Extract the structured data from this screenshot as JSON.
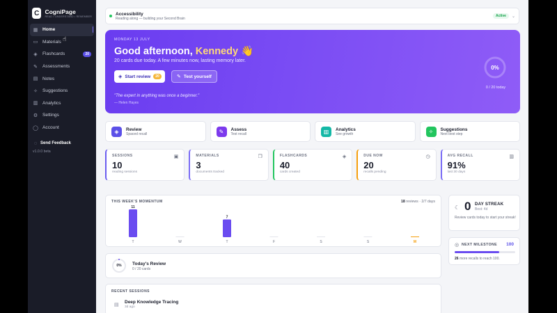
{
  "brand": {
    "name": "CogniPage",
    "tagline": "READ • UNDERSTAND • REMEMBER"
  },
  "sidebar": {
    "items": [
      {
        "label": "Home",
        "icon": "grid-icon",
        "active": true
      },
      {
        "label": "Materials",
        "icon": "folder-icon"
      },
      {
        "label": "Flashcards",
        "icon": "layers-icon",
        "badge": "20"
      },
      {
        "label": "Assessments",
        "icon": "pencil-icon"
      },
      {
        "label": "Notes",
        "icon": "note-icon"
      },
      {
        "label": "Suggestions",
        "icon": "sparkle-icon"
      },
      {
        "label": "Analytics",
        "icon": "chart-icon"
      },
      {
        "label": "Settings",
        "icon": "gear-icon"
      },
      {
        "label": "Account",
        "icon": "user-icon"
      }
    ],
    "feedback": "Send Feedback",
    "version": "v1.0.0 beta"
  },
  "accessibility": {
    "title": "Accessibility",
    "subtitle": "Reading along — building your Second Brain",
    "status": "Active"
  },
  "hero": {
    "date": "MONDAY 13 JULY",
    "greeting": "Good afternoon, ",
    "name": "Kennedy",
    "emoji": "👋",
    "subtitle": "20 cards due today. A few minutes now, lasting memory later.",
    "review_label": "Start review",
    "review_count": "20",
    "test_label": "Test yourself",
    "quote": "\"The expert in anything was once a beginner.\"",
    "author": "— Helen Hayes",
    "progress": "0%",
    "progress_fraction": 0,
    "today": "0 / 20 today"
  },
  "actions": [
    {
      "title": "Review",
      "subtitle": "Spaced recall",
      "color": "#5b50e8"
    },
    {
      "title": "Assess",
      "subtitle": "Test recall",
      "color": "#7c3aed"
    },
    {
      "title": "Analytics",
      "subtitle": "See growth",
      "color": "#14b8a6"
    },
    {
      "title": "Suggestions",
      "subtitle": "Next best step",
      "color": "#22c55e"
    }
  ],
  "stats": [
    {
      "label": "SESSIONS",
      "value": "10",
      "sub": "reading sessions",
      "accent": "#6a5cf0"
    },
    {
      "label": "MATERIALS",
      "value": "3",
      "sub": "documents tracked",
      "accent": "#7b6cf6"
    },
    {
      "label": "FLASHCARDS",
      "value": "40",
      "sub": "cards created",
      "accent": "#22c55e"
    },
    {
      "label": "DUE NOW",
      "value": "20",
      "sub": "recalls pending",
      "accent": "#f59e0b"
    },
    {
      "label": "AVG RECALL",
      "value": "91%",
      "sub": "last 30 days",
      "accent": "#7b6cf6"
    }
  ],
  "momentum": {
    "title": "THIS WEEK'S MOMENTUM",
    "reviews": "18",
    "reviews_suffix": " reviews · 2/7 days",
    "days": [
      {
        "label": "T",
        "value": 11
      },
      {
        "label": "W",
        "value": 0
      },
      {
        "label": "T",
        "value": 7
      },
      {
        "label": "F",
        "value": 0
      },
      {
        "label": "S",
        "value": 0
      },
      {
        "label": "S",
        "value": 0
      },
      {
        "label": "M",
        "value": 0,
        "today": true
      }
    ]
  },
  "streak": {
    "value": "0",
    "label": "DAY STREAK",
    "best": "Best: 4d",
    "desc": "Review cards today to start your streak!"
  },
  "milestone": {
    "label": "NEXT MILESTONE",
    "value": "100",
    "progress_fraction": 0.74,
    "remaining": "26",
    "desc": " more recalls to reach 100."
  },
  "today_review": {
    "title": "Today's Review",
    "sub": "0 / 20 cards",
    "progress": "0%"
  },
  "recent": {
    "title": "RECENT SESSIONS",
    "items": [
      {
        "name": "Deep Knowledge Tracing",
        "time": "3d ago"
      }
    ]
  }
}
